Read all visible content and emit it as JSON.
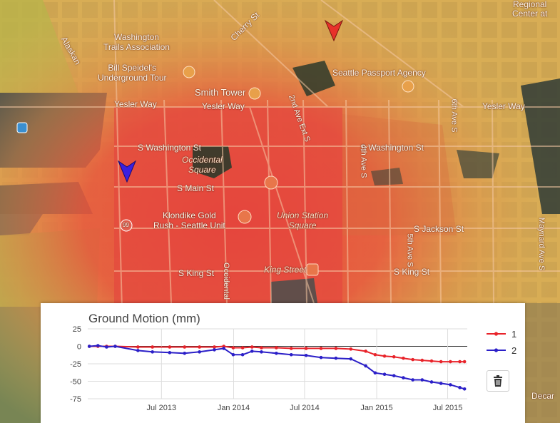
{
  "map": {
    "labels": {
      "washington_trails": "Washington\nTrails Association",
      "bill_speidel": "Bill Speidel's\nUnderground Tour",
      "smith_tower": "Smith Tower",
      "yesler_way_w": "Yesler Way",
      "yesler_way_c": "Yesler Way",
      "yesler_way_e": "Yesler Way",
      "cherry_st": "Cherry St",
      "alaskan": "Alaskan",
      "passport": "Seattle Passport Agency",
      "regional_center": "Regional\nCenter at",
      "s_washington_w": "S Washington St",
      "s_washington_e": "S Washington St",
      "occidental": "Occidental\nSquare",
      "s_main": "S Main St",
      "klondike": "Klondike Gold\nRush - Seattle Unit",
      "union_station": "Union Station\nSquare",
      "s_jackson": "S Jackson St",
      "s_king_w": "S King St",
      "s_king_e": "S King St",
      "king_street": "King Street",
      "ave_4th": "4th Ave S",
      "ave_5th": "5th Ave S",
      "ave_2nd_ext": "2nd Ave Ext S",
      "ave_maynard": "Maynard Ave S",
      "ave_6th": "6th Ave S",
      "ave_occidental": "Occidental",
      "hwy_99": "99",
      "decar": "Decar"
    },
    "markers": [
      {
        "id": "1",
        "color": "#e8312a"
      },
      {
        "id": "2",
        "color": "#3b1fe0"
      }
    ]
  },
  "panel": {
    "title": "Ground Motion (mm)",
    "trash_icon": "trash-icon"
  },
  "chart_data": {
    "type": "line",
    "title": "Ground Motion (mm)",
    "xlabel": "",
    "ylabel": "",
    "ylim": [
      -75,
      25
    ],
    "yticks": [
      25,
      0,
      -25,
      -50,
      -75
    ],
    "xlim": [
      "2012-12-25",
      "2015-08-20"
    ],
    "xticks": [
      {
        "date": "2013-07-01",
        "label": "Jul 2013"
      },
      {
        "date": "2014-01-01",
        "label": "Jan 2014"
      },
      {
        "date": "2014-07-01",
        "label": "Jul 2014"
      },
      {
        "date": "2015-01-01",
        "label": "Jan 2015"
      },
      {
        "date": "2015-07-01",
        "label": "Jul 2015"
      }
    ],
    "grid": true,
    "legend": "right",
    "series": [
      {
        "name": "1",
        "color": "#e8232a",
        "points": [
          [
            "2012-12-29",
            0
          ],
          [
            "2013-01-20",
            0
          ],
          [
            "2013-02-11",
            0
          ],
          [
            "2013-03-05",
            0
          ],
          [
            "2013-05-02",
            -1
          ],
          [
            "2013-06-08",
            -1
          ],
          [
            "2013-07-22",
            -1
          ],
          [
            "2013-08-29",
            -1
          ],
          [
            "2013-10-06",
            -1
          ],
          [
            "2013-11-13",
            -1
          ],
          [
            "2013-12-07",
            0
          ],
          [
            "2013-12-31",
            -2
          ],
          [
            "2014-01-24",
            -2
          ],
          [
            "2014-02-17",
            -1
          ],
          [
            "2014-03-13",
            -2
          ],
          [
            "2014-04-20",
            -2
          ],
          [
            "2014-05-28",
            -3
          ],
          [
            "2014-07-05",
            -3
          ],
          [
            "2014-08-12",
            -3
          ],
          [
            "2014-09-19",
            -3
          ],
          [
            "2014-10-27",
            -4
          ],
          [
            "2014-12-04",
            -7
          ],
          [
            "2014-12-28",
            -12
          ],
          [
            "2015-01-21",
            -14
          ],
          [
            "2015-02-14",
            -15
          ],
          [
            "2015-03-10",
            -17
          ],
          [
            "2015-04-03",
            -19
          ],
          [
            "2015-04-27",
            -20
          ],
          [
            "2015-05-21",
            -21
          ],
          [
            "2015-06-14",
            -22
          ],
          [
            "2015-07-08",
            -22
          ],
          [
            "2015-08-01",
            -22
          ],
          [
            "2015-08-13",
            -22
          ]
        ]
      },
      {
        "name": "2",
        "color": "#2b1fc8",
        "points": [
          [
            "2012-12-29",
            0
          ],
          [
            "2013-01-20",
            1
          ],
          [
            "2013-02-11",
            -1
          ],
          [
            "2013-03-05",
            0
          ],
          [
            "2013-05-02",
            -6
          ],
          [
            "2013-06-08",
            -8
          ],
          [
            "2013-07-22",
            -9
          ],
          [
            "2013-08-29",
            -10
          ],
          [
            "2013-10-06",
            -8
          ],
          [
            "2013-11-13",
            -5
          ],
          [
            "2013-12-07",
            -3
          ],
          [
            "2013-12-31",
            -12
          ],
          [
            "2014-01-24",
            -12
          ],
          [
            "2014-02-17",
            -7
          ],
          [
            "2014-03-13",
            -8
          ],
          [
            "2014-04-20",
            -10
          ],
          [
            "2014-05-28",
            -12
          ],
          [
            "2014-07-05",
            -13
          ],
          [
            "2014-08-12",
            -16
          ],
          [
            "2014-09-19",
            -17
          ],
          [
            "2014-10-27",
            -18
          ],
          [
            "2014-12-04",
            -28
          ],
          [
            "2014-12-28",
            -38
          ],
          [
            "2015-01-21",
            -40
          ],
          [
            "2015-02-14",
            -42
          ],
          [
            "2015-03-10",
            -45
          ],
          [
            "2015-04-03",
            -48
          ],
          [
            "2015-04-27",
            -48
          ],
          [
            "2015-05-21",
            -51
          ],
          [
            "2015-06-14",
            -53
          ],
          [
            "2015-07-08",
            -55
          ],
          [
            "2015-08-01",
            -59
          ],
          [
            "2015-08-13",
            -61
          ]
        ]
      }
    ]
  }
}
